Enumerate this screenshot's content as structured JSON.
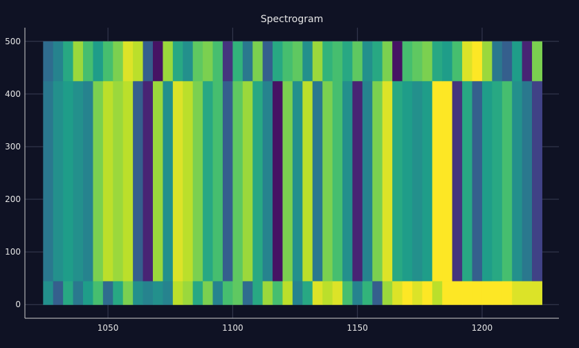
{
  "chart_data": {
    "type": "heatmap",
    "title": "Spectrogram",
    "colorscale": "Viridis",
    "x": [
      1024,
      1028,
      1032,
      1036,
      1040,
      1044,
      1048,
      1052,
      1056,
      1060,
      1064,
      1068,
      1072,
      1076,
      1080,
      1084,
      1088,
      1092,
      1096,
      1100,
      1104,
      1108,
      1112,
      1116,
      1120,
      1124,
      1128,
      1132,
      1136,
      1140,
      1144,
      1148,
      1152,
      1156,
      1160,
      1164,
      1168,
      1172,
      1176,
      1180,
      1184,
      1188,
      1192,
      1196,
      1200,
      1204,
      1208,
      1212,
      1216,
      1220,
      1224
    ],
    "y": [
      0,
      45,
      425,
      500
    ],
    "z": [
      [
        0.5,
        0.3,
        0.6,
        0.4,
        0.55,
        0.7,
        0.35,
        0.6,
        0.8,
        0.5,
        0.45,
        0.5,
        0.45,
        0.9,
        0.85,
        0.6,
        0.8,
        0.45,
        0.7,
        0.75,
        0.35,
        0.6,
        0.85,
        0.7,
        0.9,
        0.45,
        0.6,
        0.95,
        0.9,
        0.95,
        0.7,
        0.45,
        0.65,
        0.3,
        0.85,
        0.95,
        1,
        0.95,
        1,
        0.9,
        1,
        1,
        1,
        1,
        1,
        1,
        1,
        0.95,
        0.95,
        0.95
      ],
      [
        0.4,
        0.5,
        0.55,
        0.5,
        0.45,
        0.8,
        0.9,
        0.85,
        0.9,
        0.3,
        0.1,
        0.85,
        0.5,
        0.95,
        0.9,
        0.8,
        0.6,
        0.7,
        0.3,
        0.75,
        0.85,
        0.6,
        0.45,
        0.05,
        0.8,
        0.5,
        0.9,
        0.4,
        0.8,
        0.7,
        0.5,
        0.1,
        0.45,
        0.8,
        0.95,
        0.6,
        0.55,
        0.5,
        0.55,
        1,
        1,
        0.15,
        0.6,
        0.3,
        0.55,
        0.6,
        0.7,
        0.5,
        0.4,
        0.2
      ],
      [
        0.35,
        0.45,
        0.6,
        0.85,
        0.7,
        0.55,
        0.7,
        0.8,
        0.95,
        0.9,
        0.3,
        0.05,
        0.85,
        0.6,
        0.5,
        0.75,
        0.8,
        0.7,
        0.15,
        0.65,
        0.4,
        0.8,
        0.3,
        0.6,
        0.7,
        0.75,
        0.5,
        0.85,
        0.65,
        0.7,
        0.6,
        0.75,
        0.5,
        0.6,
        0.8,
        0.05,
        0.7,
        0.75,
        0.8,
        0.6,
        0.55,
        0.7,
        0.95,
        1,
        0.85,
        0.4,
        0.3,
        0.55,
        0.1,
        0.8
      ]
    ],
    "xlim": [
      1016.7,
      1230.8
    ],
    "xticks": [
      1050,
      1100,
      1150,
      1200
    ],
    "ylim": [
      -26,
      526
    ],
    "yticks": [
      0,
      100,
      200,
      300,
      400,
      500
    ],
    "grid": true
  }
}
